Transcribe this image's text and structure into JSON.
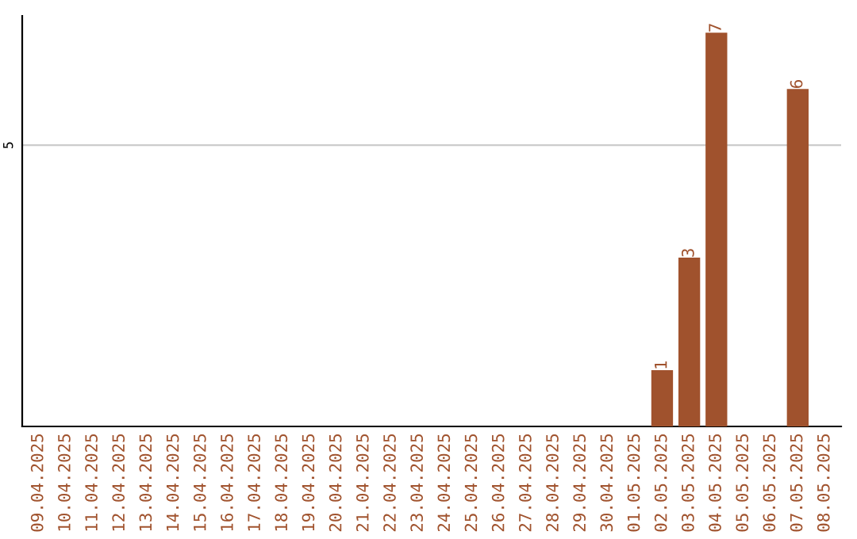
{
  "chart_data": {
    "type": "bar",
    "categories": [
      "09.04.2025",
      "10.04.2025",
      "11.04.2025",
      "12.04.2025",
      "13.04.2025",
      "14.04.2025",
      "15.04.2025",
      "16.04.2025",
      "17.04.2025",
      "18.04.2025",
      "19.04.2025",
      "20.04.2025",
      "21.04.2025",
      "22.04.2025",
      "23.04.2025",
      "24.04.2025",
      "25.04.2025",
      "26.04.2025",
      "27.04.2025",
      "28.04.2025",
      "29.04.2025",
      "30.04.2025",
      "01.05.2025",
      "02.05.2025",
      "03.05.2025",
      "04.05.2025",
      "05.05.2025",
      "06.05.2025",
      "07.05.2025",
      "08.05.2025"
    ],
    "values": [
      null,
      null,
      null,
      null,
      null,
      null,
      null,
      null,
      null,
      null,
      null,
      null,
      null,
      null,
      null,
      null,
      null,
      null,
      null,
      null,
      null,
      null,
      null,
      1,
      3,
      7,
      null,
      null,
      6,
      null
    ],
    "value_labels": [
      null,
      null,
      null,
      null,
      null,
      null,
      null,
      null,
      null,
      null,
      null,
      null,
      null,
      null,
      null,
      null,
      null,
      null,
      null,
      null,
      null,
      null,
      null,
      "1",
      "3",
      "7",
      null,
      null,
      "6",
      null
    ],
    "color": "#a0522d",
    "ylim": [
      0,
      7.3
    ],
    "yticks": [
      5
    ],
    "grid": "y"
  }
}
